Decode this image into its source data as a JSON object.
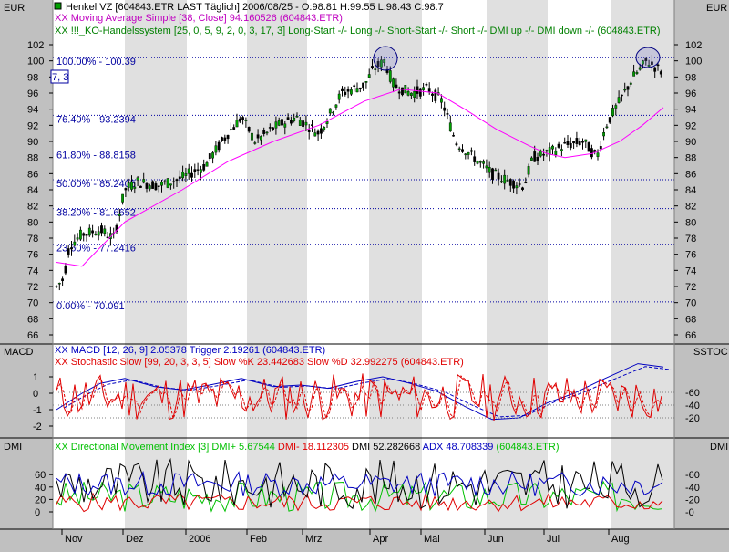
{
  "panes": {
    "price": {
      "left_unit": "EUR",
      "right_unit": "EUR",
      "ticks": [
        66,
        68,
        70,
        72,
        74,
        76,
        78,
        80,
        82,
        84,
        86,
        88,
        90,
        92,
        94,
        96,
        98,
        100,
        102
      ],
      "legend": [
        {
          "marker": "Henkel VZ [604843.ETR LAST Täglich] 2006/08/25 - O:98.81 H:99.55 L:98.43 C:98.7",
          "color": "#000000"
        },
        {
          "marker": "XX Moving Average Simple [38, Close] 94.160526 (604843.ETR)",
          "color": "#c000c0"
        },
        {
          "marker": "XX !!!_KO-Handelssystem [25, 0, 5, 9, 2, 0, 3, 17, 3] Long-Start -/- Long -/- Short-Start -/- Short -/- DMI up -/- DMI down -/- (604843.ETR)",
          "color": "#008000"
        }
      ],
      "cursor_box": "7, 3"
    },
    "macd": {
      "left_unit": "MACD",
      "right_unit": "SSTOC",
      "left_ticks": [
        -2,
        -1,
        0,
        1
      ],
      "right_ticks": [
        20,
        40,
        60
      ],
      "legend": [
        {
          "marker": "XX MACD [12, 26, 9] 2.05378 Trigger 2.19261 (604843.ETR)",
          "color": "#0000c0"
        },
        {
          "marker": "XX Stochastic Slow [99, 20, 3, 3, 5] Slow %K 23.442683 Slow %D 32.992275 (604843.ETR)",
          "color": "#e00000"
        }
      ]
    },
    "dmi": {
      "left_unit": "DMI",
      "right_unit": "DMI",
      "ticks": [
        0,
        20,
        40,
        60
      ],
      "legend": {
        "prefix": "XX Directional Movement Index [3] DMI+ 5.67544",
        "dmi_minus": " DMI- 18.112305",
        "dmi": " DMI 52.282668",
        "adx": " ADX 48.708339",
        "suffix": " (604843.ETR)"
      }
    }
  },
  "x_axis": {
    "labels": [
      "Nov",
      "Dez",
      "2006",
      "Feb",
      "Mrz",
      "Apr",
      "Mai",
      "Jun",
      "Jul",
      "Aug"
    ]
  },
  "fib_levels": [
    {
      "label": "100.00% - 100.39",
      "value": 100.39
    },
    {
      "label": "76.40% - 93.2394",
      "value": 93.2394
    },
    {
      "label": "61.80% - 88.8158",
      "value": 88.8158
    },
    {
      "label": "50.00% - 85.2405",
      "value": 85.2405
    },
    {
      "label": "38.20% - 81.6652",
      "value": 81.6652
    },
    {
      "label": "23.60% - 77.2416",
      "value": 77.2416
    },
    {
      "label": "0.00% - 70.091",
      "value": 70.091
    }
  ],
  "colors": {
    "pane_bg": "#ffffff",
    "band_bg": "#e0e0e0",
    "up_candle": "#00a000",
    "down_candle": "#000000",
    "ma": "#ff00ff",
    "fib": "#0000a0",
    "macd": "#0000c0",
    "stoch": "#e00000",
    "dmi_plus": "#00c000",
    "dmi_minus": "#e00000",
    "dmi": "#000000",
    "adx": "#0000c0"
  },
  "chart_data": [
    {
      "type": "line",
      "title": "Henkel VZ [604843.ETR LAST Täglich] 2006/08/25 - O:98.81 H:99.55 L:98.43 C:98.7",
      "ylabel": "EUR",
      "ylim": [
        66,
        102
      ],
      "x": [
        "Nov",
        "Dez",
        "2006",
        "Feb",
        "Mrz",
        "Apr",
        "Mai",
        "Jun",
        "Jul",
        "Aug"
      ],
      "series": [
        {
          "name": "Henkel VZ close (approx. monthly)",
          "values": [
            73,
            85,
            84,
            92,
            93,
            99,
            95,
            86,
            89,
            98.7
          ]
        },
        {
          "name": "Moving Average Simple [38, Close]",
          "values": [
            75,
            80,
            84,
            88,
            91,
            96,
            96,
            90,
            87,
            94.16
          ]
        }
      ]
    },
    {
      "type": "line",
      "title": "MACD [12, 26, 9] / Stochastic Slow [99, 20, 3, 3, 5]",
      "ylim": [
        -2.5,
        2
      ],
      "x": [
        "Nov",
        "Dez",
        "2006",
        "Feb",
        "Mrz",
        "Apr",
        "Mai",
        "Jun",
        "Jul",
        "Aug"
      ],
      "series": [
        {
          "name": "MACD",
          "values": [
            -1,
            0.8,
            0.2,
            0.6,
            0.4,
            0.9,
            0.1,
            -1.6,
            -0.5,
            2.05
          ]
        },
        {
          "name": "Trigger",
          "values": [
            -0.8,
            0.6,
            0.3,
            0.5,
            0.5,
            0.8,
            0.2,
            -1.4,
            -0.6,
            2.19
          ]
        }
      ]
    },
    {
      "type": "line",
      "title": "Directional Movement Index [3]",
      "ylabel": "DMI",
      "ylim": [
        -5,
        80
      ],
      "x": [
        "Nov",
        "Dez",
        "2006",
        "Feb",
        "Mrz",
        "Apr",
        "Mai",
        "Jun",
        "Jul",
        "Aug"
      ],
      "series": [
        {
          "name": "DMI+",
          "values": [
            40,
            25,
            20,
            35,
            30,
            45,
            15,
            10,
            30,
            5.68
          ]
        },
        {
          "name": "DMI-",
          "values": [
            10,
            15,
            20,
            10,
            15,
            10,
            30,
            35,
            15,
            18.11
          ]
        },
        {
          "name": "DMI",
          "values": [
            60,
            40,
            30,
            55,
            40,
            65,
            45,
            60,
            50,
            52.28
          ]
        },
        {
          "name": "ADX",
          "values": [
            50,
            45,
            35,
            45,
            40,
            55,
            50,
            55,
            45,
            48.71
          ]
        }
      ]
    }
  ]
}
